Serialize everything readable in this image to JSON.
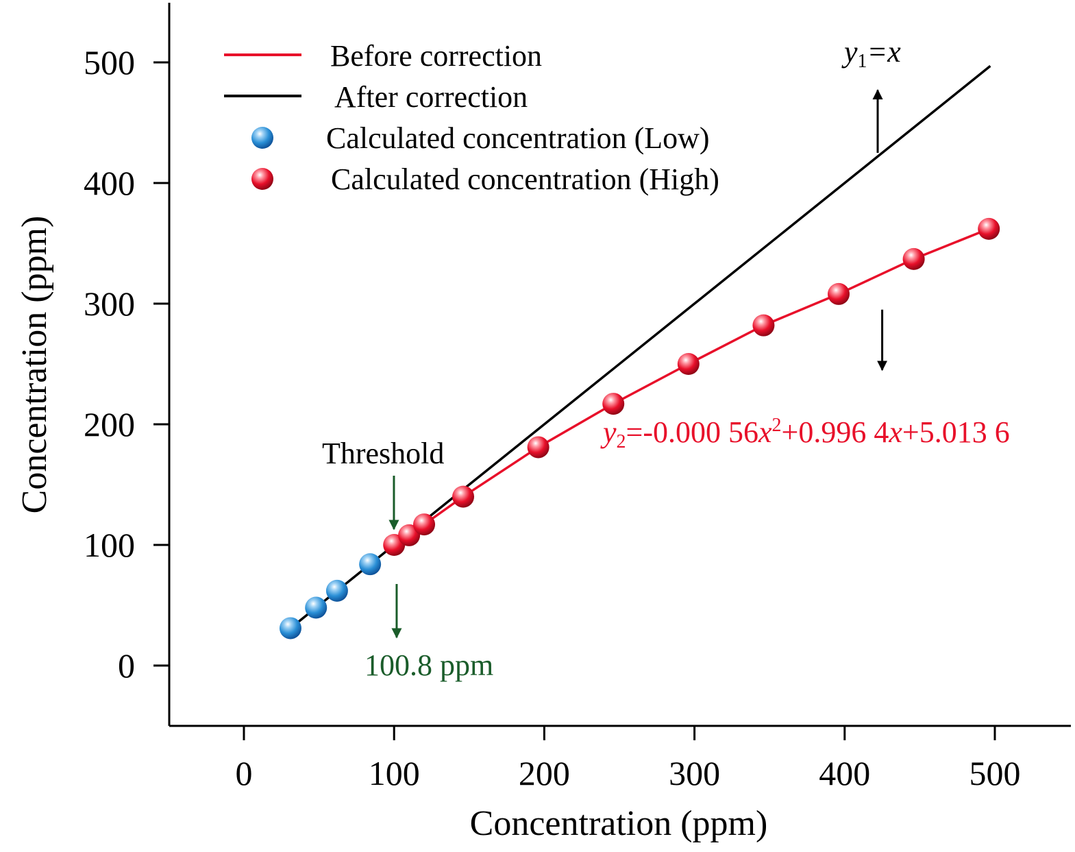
{
  "chart_data": {
    "type": "line",
    "title": "",
    "xlabel": "Concentration (ppm)",
    "ylabel": "Concentration (ppm)",
    "xlim": [
      -50,
      550
    ],
    "ylim": [
      -50,
      550
    ],
    "x_ticks": [
      0,
      100,
      200,
      300,
      400,
      500
    ],
    "y_ticks": [
      0,
      100,
      200,
      300,
      400,
      500
    ],
    "grid": false,
    "legend_position": "top-left",
    "colors": {
      "before": "#e8102a",
      "after": "#000000",
      "low_points": "#2a8fd6",
      "high_points": "#e8102a",
      "threshold": "#1a5c2a"
    },
    "legend": {
      "before": "Before correction",
      "after": "After correction",
      "low": "Calculated concentration (Low)",
      "high": "Calculated concentration (High)"
    },
    "series": [
      {
        "key": "after",
        "name": "After correction",
        "kind": "line",
        "x": [
          30,
          497
        ],
        "y": [
          30,
          497
        ]
      },
      {
        "key": "before",
        "name": "Before correction",
        "kind": "line",
        "x": [
          100,
          110,
          120,
          146,
          196,
          246,
          296,
          346,
          396,
          446,
          496
        ],
        "y": [
          100,
          108,
          117,
          140,
          181,
          217,
          250,
          282,
          308,
          337,
          362
        ]
      },
      {
        "key": "low",
        "name": "Calculated concentration (Low)",
        "kind": "scatter",
        "x": [
          31,
          48,
          62,
          84
        ],
        "y": [
          31,
          48,
          62,
          84
        ]
      },
      {
        "key": "high",
        "name": "Calculated concentration (High)",
        "kind": "scatter",
        "x": [
          100,
          110,
          120,
          146,
          196,
          246,
          296,
          346,
          396,
          446,
          496
        ],
        "y": [
          100,
          108,
          117,
          140,
          181,
          217,
          250,
          282,
          308,
          337,
          362
        ]
      }
    ],
    "annotations": {
      "y1_label": {
        "var": "y",
        "sub": "1",
        "rest": "=x"
      },
      "y2_label": {
        "var": "y",
        "sub": "2",
        "part1": "=-0.000 56",
        "x1": "x",
        "sup": "2",
        "part2": "+0.996 4",
        "x2": "x",
        "part3": "+5.013 6"
      },
      "threshold_label": "Threshold",
      "threshold_value": "100.8 ppm",
      "threshold_x": 100.8,
      "y1_arrow": {
        "x": 422,
        "from_y": 425,
        "to_y": 477
      },
      "y2_arrow": {
        "x": 425,
        "from_y": 295,
        "to_y": 245
      }
    }
  }
}
